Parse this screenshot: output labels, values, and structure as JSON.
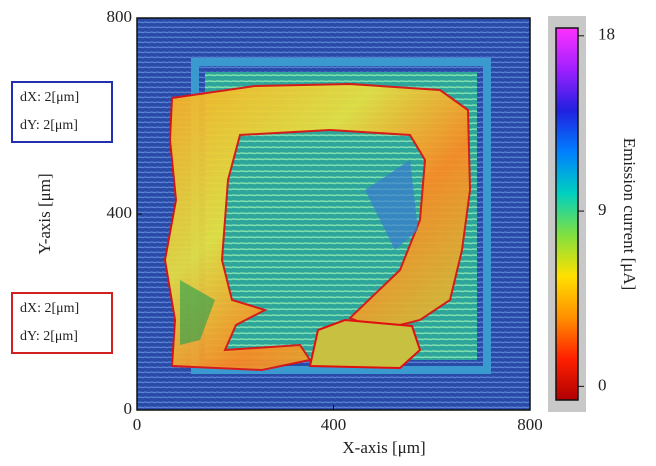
{
  "chart_data": {
    "type": "heatmap",
    "xlabel": "X-axis [μm]",
    "ylabel": "Y-axis [μm]",
    "xlim": [
      0,
      800
    ],
    "xticks": [
      0,
      400,
      800
    ],
    "ylim": [
      0,
      800
    ],
    "yticks": [
      0,
      400,
      800
    ],
    "colorbar": {
      "label": "Emission current [μA]",
      "lim": [
        -0.7,
        18.4
      ],
      "ticks": [
        0,
        9,
        18
      ],
      "colormap": [
        "#b00000",
        "#ff2000",
        "#ff9000",
        "#ffe000",
        "#80e040",
        "#00d0c0",
        "#0080ff",
        "#2020e0",
        "#a020ff",
        "#ff30ff"
      ]
    },
    "annotations": [
      {
        "lines": [
          "dX: 2[μm]",
          "dY: 2[μm]"
        ],
        "color": "#2030b0"
      },
      {
        "lines": [
          "dX: 2[μm]",
          "dY: 2[μm]"
        ],
        "color": "#d02020"
      }
    ]
  }
}
